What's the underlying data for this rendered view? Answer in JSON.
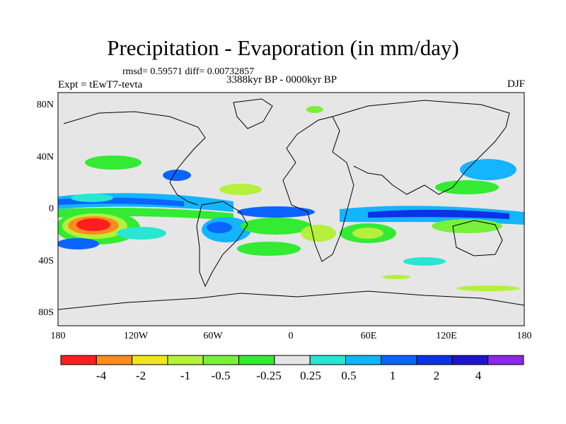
{
  "title": "Precipitation - Evaporation (in mm/day)",
  "stats": "rmsd= 0.59571 diff= 0.00732857",
  "experiment": "Expt = tEwT7-tevta",
  "period": "3388kyr BP - 0000kyr BP",
  "season": "DJF",
  "colors": {
    "background": "#e6e6e6",
    "land_outline": "#000000",
    "bins": [
      "#ff1e1e",
      "#ff8c1e",
      "#f0e61e",
      "#b4f03c",
      "#78f03c",
      "#32eb32",
      "#e6e6e6",
      "#28e6d2",
      "#14b4ff",
      "#0a64ff",
      "#0a32e6",
      "#1e14c8",
      "#8c28e6"
    ]
  },
  "axes": {
    "lat_labels": [
      "80N",
      "40N",
      "0",
      "40S",
      "80S"
    ],
    "lon_labels": [
      "180",
      "120W",
      "60W",
      "0",
      "60E",
      "120E",
      "180"
    ]
  },
  "colorbar": {
    "labels": [
      "-4",
      "-2",
      "-1",
      "-0.5",
      "-0.25",
      "0.25",
      "0.5",
      "1",
      "2",
      "4"
    ]
  }
}
